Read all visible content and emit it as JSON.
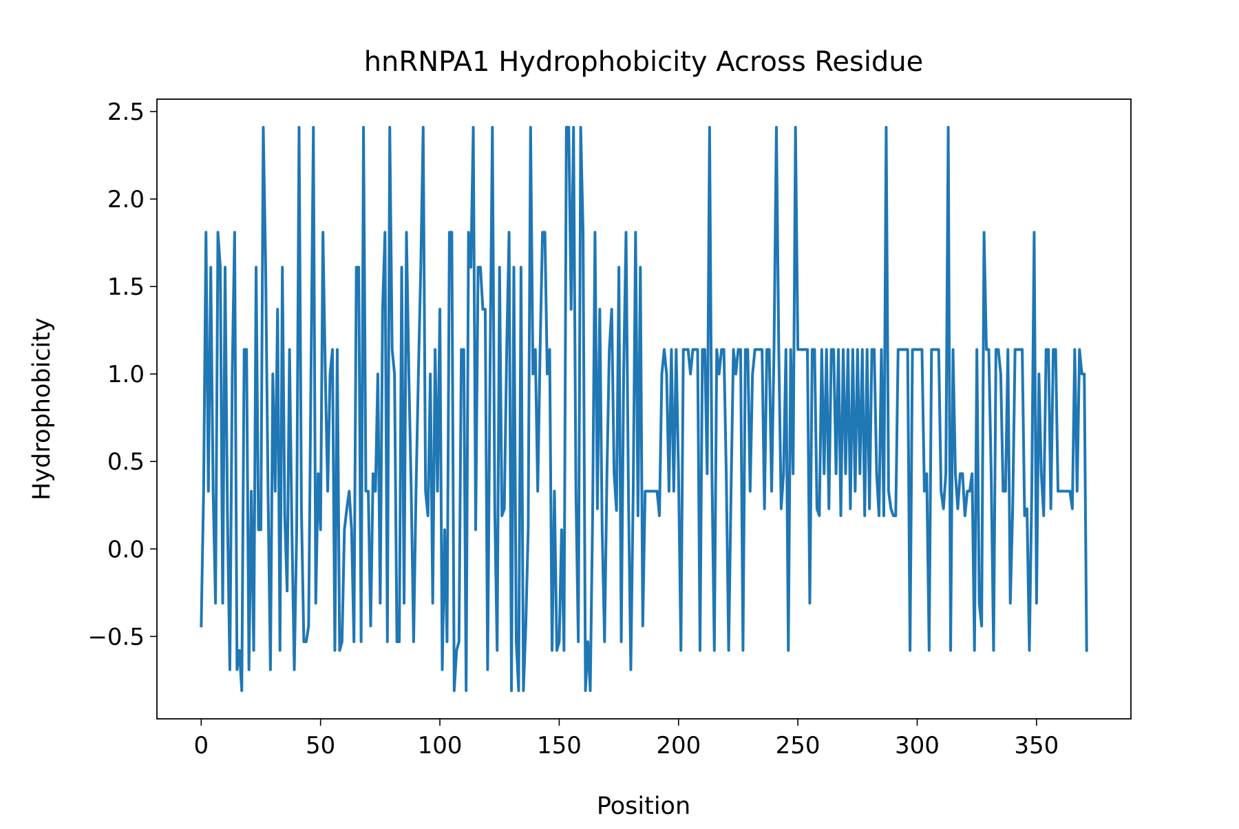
{
  "chart_data": {
    "type": "line",
    "title": "hnRNPA1 Hydrophobicity Across Residue",
    "x_label": "Position",
    "y_label": "Hydrophobicity",
    "xlim": [
      -18.55,
      389.55
    ],
    "ylim": [
      -0.971,
      2.571
    ],
    "xticks": [
      0,
      50,
      100,
      150,
      200,
      250,
      300,
      350
    ],
    "yticks": [
      {
        "value": -0.5,
        "label": "−0.5"
      },
      {
        "value": 0,
        "label": "0.0"
      },
      0.5,
      {
        "value": 1,
        "label": "1.0"
      },
      1.5,
      {
        "value": 2,
        "label": "2.0"
      },
      2.5
    ],
    "grid": false,
    "x": [
      0,
      1,
      2,
      3,
      4,
      5,
      6,
      7,
      8,
      9,
      10,
      11,
      12,
      13,
      14,
      15,
      16,
      17,
      18,
      19,
      20,
      21,
      22,
      23,
      24,
      25,
      26,
      27,
      28,
      29,
      30,
      31,
      32,
      33,
      34,
      35,
      36,
      37,
      38,
      39,
      40,
      41,
      42,
      43,
      44,
      45,
      46,
      47,
      48,
      49,
      50,
      51,
      52,
      53,
      54,
      55,
      56,
      57,
      58,
      59,
      60,
      61,
      62,
      63,
      64,
      65,
      66,
      67,
      68,
      69,
      70,
      71,
      72,
      73,
      74,
      75,
      76,
      77,
      78,
      79,
      80,
      81,
      82,
      83,
      84,
      85,
      86,
      87,
      88,
      89,
      90,
      91,
      92,
      93,
      94,
      95,
      96,
      97,
      98,
      99,
      100,
      101,
      102,
      103,
      104,
      105,
      106,
      107,
      108,
      109,
      110,
      111,
      112,
      113,
      114,
      115,
      116,
      117,
      118,
      119,
      120,
      121,
      122,
      123,
      124,
      125,
      126,
      127,
      128,
      129,
      130,
      131,
      132,
      133,
      134,
      135,
      136,
      137,
      138,
      139,
      140,
      141,
      142,
      143,
      144,
      145,
      146,
      147,
      148,
      149,
      150,
      151,
      152,
      153,
      154,
      155,
      156,
      157,
      158,
      159,
      160,
      161,
      162,
      163,
      164,
      165,
      166,
      167,
      168,
      169,
      170,
      171,
      172,
      173,
      174,
      175,
      176,
      177,
      178,
      179,
      180,
      181,
      182,
      183,
      184,
      185,
      186,
      187,
      188,
      189,
      190,
      191,
      192,
      193,
      194,
      195,
      196,
      197,
      198,
      199,
      200,
      201,
      202,
      203,
      204,
      205,
      206,
      207,
      208,
      209,
      210,
      211,
      212,
      213,
      214,
      215,
      216,
      217,
      218,
      219,
      220,
      221,
      222,
      223,
      224,
      225,
      226,
      227,
      228,
      229,
      230,
      231,
      232,
      233,
      234,
      235,
      236,
      237,
      238,
      239,
      240,
      241,
      242,
      243,
      244,
      245,
      246,
      247,
      248,
      249,
      250,
      251,
      252,
      253,
      254,
      255,
      256,
      257,
      258,
      259,
      260,
      261,
      262,
      263,
      264,
      265,
      266,
      267,
      268,
      269,
      270,
      271,
      272,
      273,
      274,
      275,
      276,
      277,
      278,
      279,
      280,
      281,
      282,
      283,
      284,
      285,
      286,
      287,
      288,
      289,
      290,
      291,
      292,
      293,
      294,
      295,
      296,
      297,
      298,
      299,
      300,
      301,
      302,
      303,
      304,
      305,
      306,
      307,
      308,
      309,
      310,
      311,
      312,
      313,
      314,
      315,
      316,
      317,
      318,
      319,
      320,
      321,
      322,
      323,
      324,
      325,
      326,
      327,
      328,
      329,
      330,
      331,
      332,
      333,
      334,
      335,
      336,
      337,
      338,
      339,
      340,
      341,
      342,
      343,
      344,
      345,
      346,
      347,
      348,
      349,
      350,
      351,
      352,
      353,
      354,
      355,
      356,
      357,
      358,
      359,
      360,
      361,
      362,
      363,
      364,
      365,
      366,
      367,
      368,
      369,
      370,
      371
    ],
    "series": [
      {
        "color": "#1f77b4",
        "values": [
          -0.44,
          0.33,
          1.81,
          0.33,
          1.61,
          0.33,
          -0.31,
          1.81,
          1.61,
          -0.31,
          1.61,
          0.19,
          -0.69,
          1.0,
          1.81,
          -0.69,
          -0.58,
          -0.81,
          1.14,
          1.14,
          -0.69,
          0.33,
          -0.58,
          1.61,
          0.11,
          0.11,
          2.41,
          1.61,
          0.33,
          -0.69,
          1.0,
          0.33,
          1.37,
          -0.58,
          1.61,
          0.19,
          -0.24,
          1.14,
          0.11,
          -0.69,
          0.11,
          2.41,
          0.22,
          -0.53,
          -0.53,
          -0.44,
          1.0,
          2.41,
          -0.31,
          0.43,
          0.11,
          1.81,
          1.0,
          0.33,
          1.0,
          1.14,
          -0.58,
          1.14,
          -0.58,
          -0.53,
          0.11,
          0.23,
          0.33,
          0.11,
          -0.53,
          1.61,
          1.61,
          -0.53,
          2.41,
          0.33,
          0.33,
          -0.44,
          0.43,
          0.33,
          1.0,
          -0.31,
          1.37,
          1.81,
          -0.53,
          2.41,
          1.14,
          1.0,
          -0.53,
          -0.53,
          1.61,
          -0.31,
          1.81,
          1.0,
          0.33,
          -0.53,
          0.33,
          1.0,
          1.61,
          2.41,
          0.33,
          0.19,
          1.0,
          -0.31,
          1.14,
          0.33,
          1.37,
          -0.69,
          0.11,
          -0.53,
          1.81,
          1.81,
          -0.81,
          -0.58,
          -0.53,
          1.14,
          1.14,
          -0.81,
          1.81,
          1.61,
          2.41,
          0.11,
          1.61,
          1.61,
          1.37,
          1.37,
          -0.69,
          1.0,
          2.41,
          0.23,
          -0.58,
          1.61,
          0.19,
          0.23,
          1.14,
          1.81,
          -0.81,
          1.61,
          -0.53,
          -0.81,
          1.61,
          -0.81,
          -0.44,
          0.11,
          2.41,
          1.0,
          1.14,
          0.33,
          1.14,
          1.81,
          1.81,
          1.0,
          1.14,
          -0.58,
          0.33,
          -0.58,
          -0.53,
          0.11,
          -0.58,
          2.41,
          2.41,
          1.37,
          2.41,
          0.33,
          -0.53,
          2.41,
          1.81,
          -0.81,
          -0.53,
          -0.81,
          0.19,
          1.81,
          0.23,
          1.37,
          0.11,
          -0.53,
          0.43,
          1.14,
          1.37,
          0.43,
          0.22,
          1.61,
          -0.53,
          1.0,
          1.81,
          0.33,
          -0.69,
          0.33,
          1.81,
          0.19,
          1.61,
          -0.44,
          0.33,
          0.33,
          0.33,
          0.33,
          0.33,
          0.33,
          0.19,
          1.0,
          1.14,
          1.0,
          0.33,
          1.14,
          0.33,
          1.14,
          0.43,
          -0.58,
          1.14,
          1.14,
          1.14,
          1.0,
          1.14,
          1.14,
          1.14,
          -0.58,
          1.14,
          1.14,
          0.43,
          2.41,
          0.43,
          -0.58,
          1.14,
          1.0,
          1.14,
          1.14,
          0.43,
          -0.58,
          0.33,
          1.14,
          1.0,
          1.14,
          1.14,
          -0.58,
          1.14,
          1.14,
          0.33,
          1.0,
          1.14,
          1.14,
          1.14,
          1.14,
          0.23,
          1.14,
          1.14,
          0.33,
          1.14,
          2.41,
          1.14,
          0.23,
          0.43,
          1.14,
          -0.58,
          1.14,
          0.43,
          2.41,
          1.14,
          1.14,
          1.14,
          1.14,
          1.14,
          -0.31,
          1.14,
          1.14,
          0.23,
          0.19,
          1.14,
          0.43,
          1.14,
          0.23,
          1.14,
          1.14,
          0.43,
          1.14,
          0.19,
          1.14,
          0.43,
          1.14,
          0.23,
          1.14,
          0.33,
          1.14,
          0.43,
          1.14,
          0.19,
          1.14,
          0.23,
          1.14,
          1.14,
          0.43,
          0.19,
          1.14,
          0.19,
          2.41,
          0.33,
          0.23,
          0.19,
          0.19,
          1.14,
          1.14,
          1.14,
          1.14,
          1.14,
          -0.58,
          1.14,
          1.14,
          1.14,
          1.14,
          1.14,
          0.33,
          0.43,
          -0.58,
          1.14,
          1.14,
          1.14,
          1.14,
          0.33,
          0.23,
          0.43,
          2.41,
          -0.58,
          1.14,
          0.43,
          0.23,
          0.43,
          0.43,
          0.19,
          0.33,
          0.33,
          0.43,
          -0.58,
          1.14,
          -0.31,
          -0.44,
          1.81,
          1.14,
          1.14,
          0.43,
          -0.58,
          1.14,
          1.14,
          1.0,
          0.33,
          0.33,
          1.14,
          -0.31,
          0.23,
          1.14,
          1.14,
          1.14,
          1.14,
          0.19,
          0.23,
          -0.58,
          0.33,
          1.81,
          -0.31,
          1.0,
          0.43,
          0.19,
          1.14,
          1.14,
          0.23,
          1.14,
          1.14,
          0.33,
          0.33,
          0.33,
          0.33,
          0.33,
          0.33,
          0.23,
          1.14,
          0.33,
          1.14,
          1.0,
          1.0,
          -0.58
        ]
      }
    ]
  }
}
